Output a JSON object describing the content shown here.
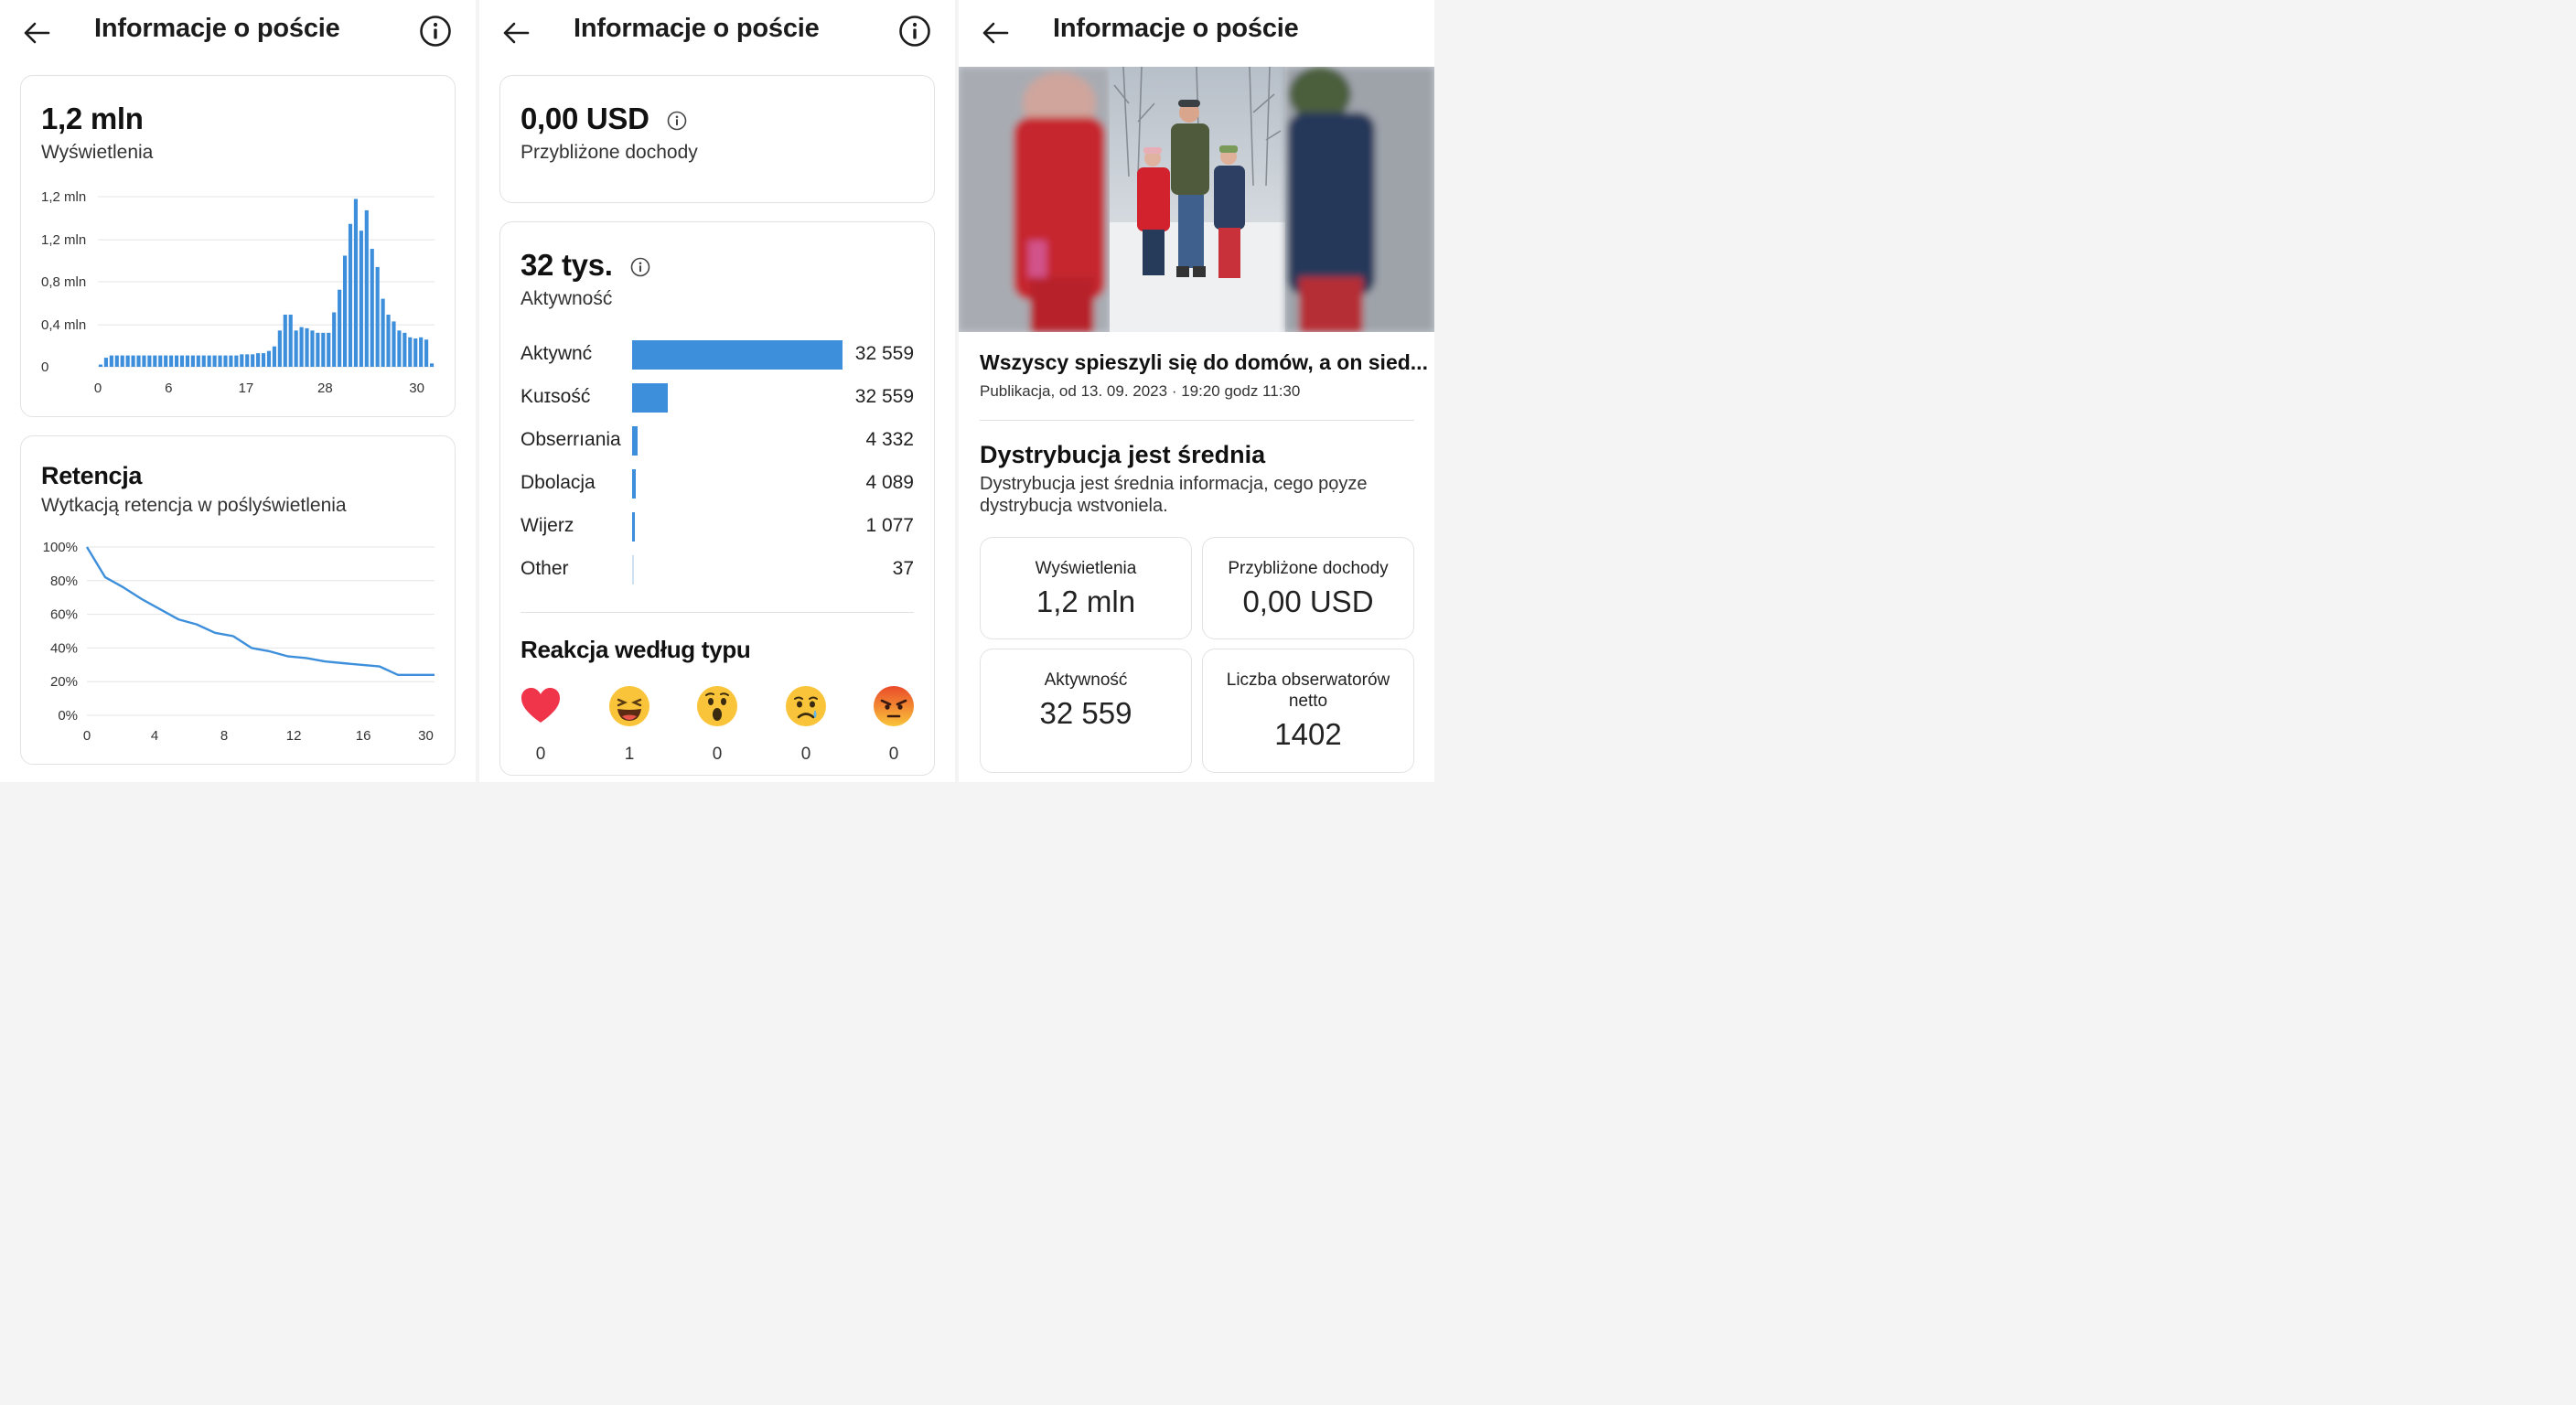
{
  "panel1": {
    "title": "Informacje o poście",
    "views": {
      "value": "1,2 mln",
      "label": "Wyświetlenia"
    },
    "views_chart": {
      "type": "bar",
      "y_tick_labels": [
        "1,2 mln",
        "1,2 mln",
        "0,8 mln",
        "0,4 mln",
        "0"
      ],
      "x_tick_labels": [
        "0",
        "6",
        "17",
        "28",
        "30"
      ],
      "values": [
        0.02,
        0.08,
        0.1,
        0.1,
        0.1,
        0.1,
        0.1,
        0.1,
        0.1,
        0.1,
        0.1,
        0.1,
        0.1,
        0.1,
        0.1,
        0.1,
        0.1,
        0.1,
        0.1,
        0.1,
        0.1,
        0.1,
        0.1,
        0.1,
        0.1,
        0.1,
        0.11,
        0.11,
        0.11,
        0.12,
        0.12,
        0.14,
        0.18,
        0.32,
        0.46,
        0.46,
        0.32,
        0.35,
        0.34,
        0.32,
        0.3,
        0.3,
        0.3,
        0.48,
        0.68,
        0.98,
        1.26,
        1.48,
        1.2,
        1.38,
        1.04,
        0.88,
        0.6,
        0.46,
        0.4,
        0.32,
        0.3,
        0.26,
        0.25,
        0.26,
        0.24,
        0.03
      ]
    },
    "retention": {
      "title": "Retencja",
      "subtitle": "Wytkacją retencja w poślyświetlenia"
    },
    "retention_chart": {
      "type": "line",
      "y_tick_labels": [
        "100%",
        "80%",
        "60%",
        "40%",
        "20%",
        "0%"
      ],
      "x_tick_labels": [
        "0",
        "4",
        "8",
        "12",
        "16",
        "30"
      ],
      "x": [
        0,
        1,
        2,
        3,
        4,
        5,
        6,
        7,
        8,
        9,
        10,
        11,
        12,
        13,
        14,
        15,
        16,
        17,
        18,
        19
      ],
      "y": [
        100,
        82,
        76,
        69,
        63,
        57,
        54,
        49,
        47,
        40,
        38,
        35,
        34,
        32,
        31,
        30,
        29,
        24,
        24,
        24
      ]
    }
  },
  "panel2": {
    "title": "Informacje o poście",
    "earnings": {
      "value": "0,00 USD",
      "label": "Przybliżone dochody"
    },
    "activity": {
      "value": "32 tys.",
      "label": "Aktywność"
    },
    "activity_rows": [
      {
        "label": "Aktywnć",
        "value": "32 559",
        "fraction": 1.0
      },
      {
        "label": "Kuɪsość",
        "value": "32 559",
        "fraction": 0.17
      },
      {
        "label": "Obserrıania",
        "value": "4 332",
        "fraction": 0.025
      },
      {
        "label": "Dbolacja",
        "value": "4 089",
        "fraction": 0.017
      },
      {
        "label": "Wijerz",
        "value": "1 077",
        "fraction": 0.012
      },
      {
        "label": "Other",
        "value": "37",
        "fraction": 0.004
      }
    ],
    "reactions_title": "Reakcja według typu",
    "reactions": [
      {
        "icon": "heart-icon",
        "count": "0"
      },
      {
        "icon": "laughing-face-icon",
        "count": "1"
      },
      {
        "icon": "surprised-face-icon",
        "count": "0"
      },
      {
        "icon": "sad-face-icon",
        "count": "0"
      },
      {
        "icon": "angry-face-icon",
        "count": "0"
      }
    ]
  },
  "panel3": {
    "title": "Informacje o poście",
    "post_title": "Wszyscy spieszyli się do domów, a on sied...",
    "post_meta": "Publikacja, od 13. 09. 2023 · 19:20 godz 11:30",
    "distribution_title": "Dystrybucja jest średnia",
    "distribution_desc": "Dystrybucja jest średnia informacja, cego pọyze dystrybucja wstvoniela.",
    "stats": [
      {
        "label": "Wyświetlenia",
        "value": "1,2 mln"
      },
      {
        "label": "Przybliżone dochody",
        "value": "0,00 USD"
      },
      {
        "label": "Aktywność",
        "value": "32 559"
      },
      {
        "label": "Liczba obserwatorów netto",
        "value": "1402"
      }
    ]
  },
  "colors": {
    "accent": "#3d8fdc",
    "text": "#1c1c1c",
    "border": "#e2e2e2"
  }
}
